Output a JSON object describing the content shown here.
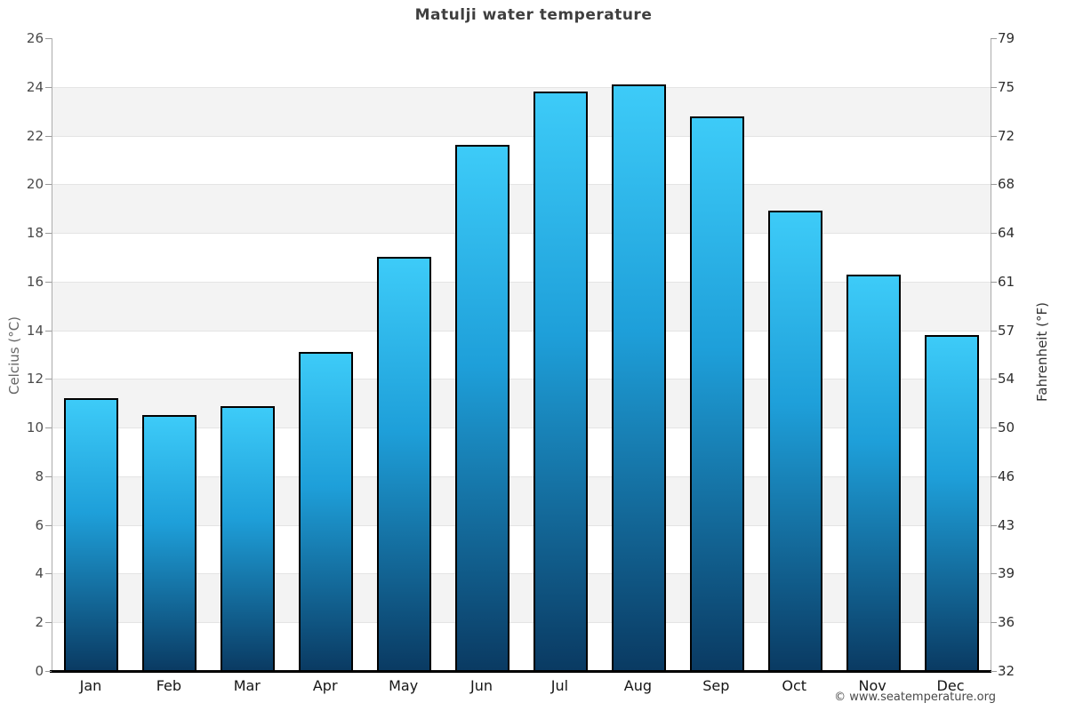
{
  "page": {
    "title": "Matulji water temperature",
    "footer": "© www.seatemperature.org"
  },
  "chart_data": {
    "type": "bar",
    "title": "Matulji water temperature",
    "categories": [
      "Jan",
      "Feb",
      "Mar",
      "Apr",
      "May",
      "Jun",
      "Jul",
      "Aug",
      "Sep",
      "Oct",
      "Nov",
      "Dec"
    ],
    "values": [
      11.2,
      10.5,
      10.9,
      13.1,
      17.0,
      21.6,
      23.8,
      24.1,
      22.8,
      18.9,
      16.3,
      13.8
    ],
    "xlabel": "",
    "ylabel_left": "Celcius (°C)",
    "ylabel_right": "Fahrenheit (°F)",
    "ylim": [
      0,
      26
    ],
    "yticks_celsius": [
      26,
      24,
      22,
      20,
      18,
      16,
      14,
      12,
      10,
      8,
      6,
      4,
      2,
      0
    ],
    "yticks_fahrenheit": [
      79,
      75,
      72,
      68,
      64,
      61,
      57,
      54,
      50,
      46,
      43,
      39,
      36,
      32
    ],
    "grid": "alternating horizontal bands every 2°C, light gridlines",
    "legend": "none",
    "colors": {
      "bar_gradient_top": "#3dcbf8",
      "bar_gradient_mid": "#1e9fd9",
      "bar_gradient_bottom": "#0a3a62",
      "bar_border": "#000000",
      "band_gray": "#f3f3f3",
      "gridline": "#e4e4e4",
      "axis_line": "#ababab",
      "bottom_axis": "#000000",
      "title_text": "#3f3f3f"
    }
  }
}
